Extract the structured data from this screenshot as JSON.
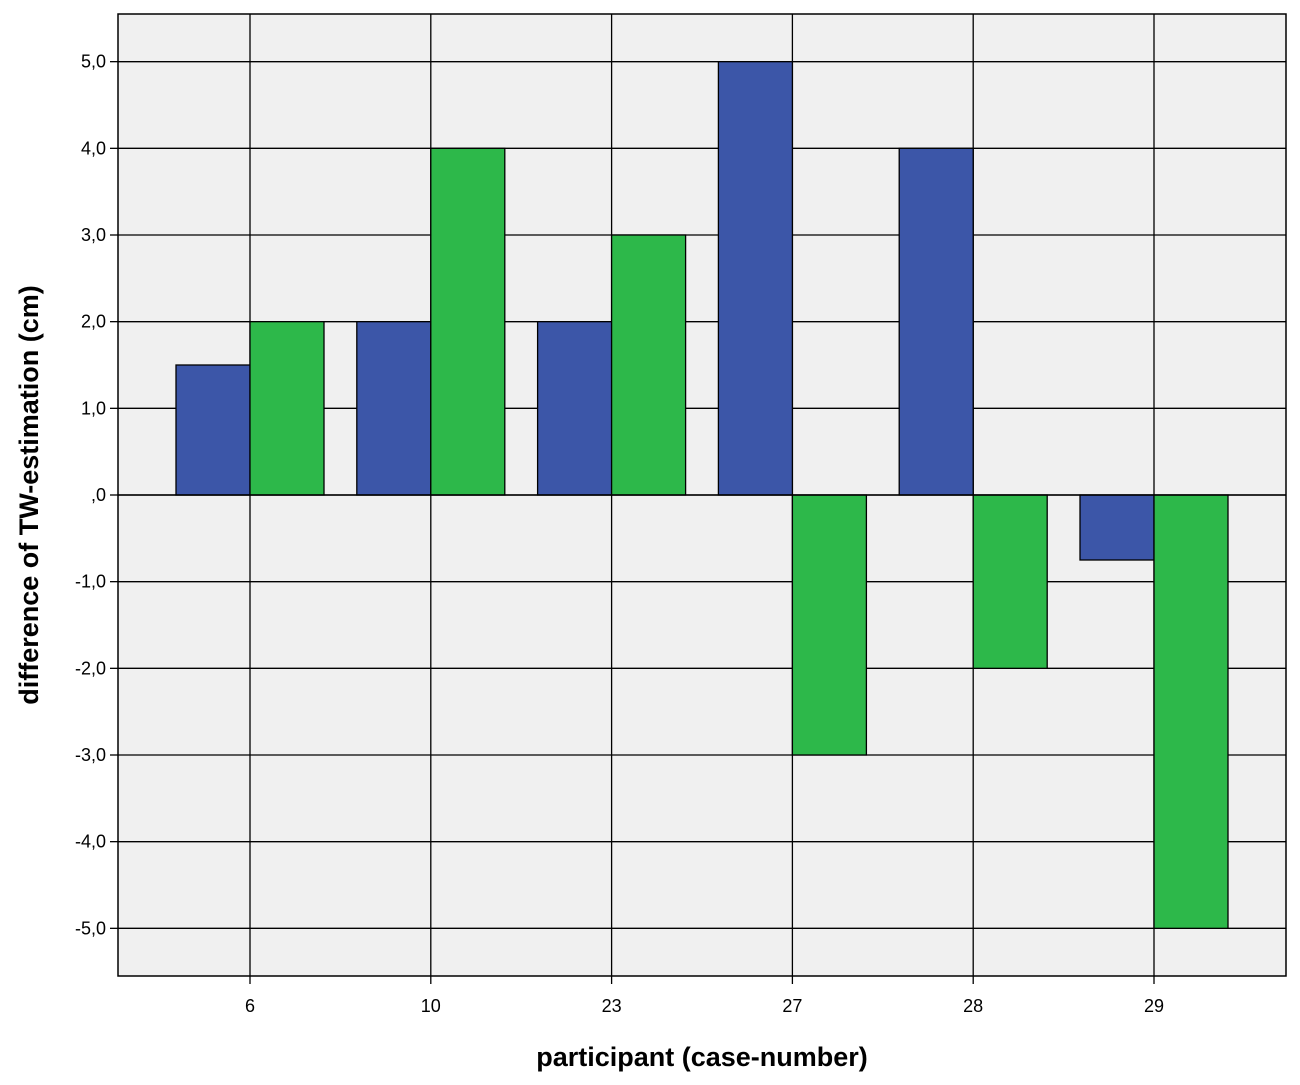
{
  "chart_data": {
    "type": "bar",
    "xlabel": "participant (case-number)",
    "ylabel": "difference of TW-estimation (cm)",
    "categories": [
      "6",
      "10",
      "23",
      "27",
      "28",
      "29"
    ],
    "series": [
      {
        "values": [
          1.5,
          2.0,
          2.0,
          5.0,
          4.0,
          -0.75
        ]
      },
      {
        "values": [
          2.0,
          4.0,
          3.0,
          -3.0,
          -2.0,
          -5.0
        ]
      }
    ],
    "ylim": [
      -5.55,
      5.55
    ],
    "yticks": [
      5,
      4,
      3,
      2,
      1,
      0,
      -1,
      -2,
      -3,
      -4,
      -5
    ],
    "ytick_labels": [
      "5,0",
      "4,0",
      "3,0",
      "2,0",
      "1,0",
      ",0",
      "-1,0",
      "-2,0",
      "-3,0",
      "-4,0",
      "-5,0"
    ],
    "grid": true,
    "legend": "none",
    "colors": {
      "series": [
        "#3c56a8",
        "#2db84a"
      ],
      "plot_background": "#f0f0f0",
      "gridline": "#000000"
    }
  }
}
